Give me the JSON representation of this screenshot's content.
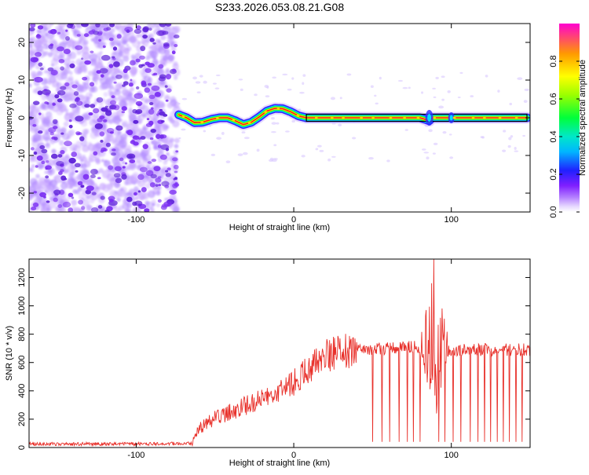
{
  "title": "S233.2026.053.08.21.G08",
  "chart_data": [
    {
      "type": "heatmap",
      "name": "spectrogram",
      "xlabel": "Height of straight line (km)",
      "ylabel": "Frequency (Hz)",
      "xlim": [
        -168,
        150
      ],
      "ylim": [
        -25,
        25
      ],
      "xticks": [
        -100,
        0,
        100
      ],
      "yticks": [
        -20,
        -10,
        0,
        10,
        20
      ],
      "noise_region_x": [
        -168,
        -74
      ],
      "ridge": {
        "x": [
          -73,
          -68,
          -63,
          -58,
          -52,
          -47,
          -42,
          -37,
          -32,
          -27,
          -22,
          -17,
          -12,
          -7,
          -2,
          3,
          8,
          20,
          40,
          60,
          80,
          84,
          86,
          88,
          95,
          98,
          100,
          102,
          110,
          130,
          148
        ],
        "y": [
          0.8,
          0,
          -1.3,
          -1.2,
          -0.4,
          0,
          0,
          -0.8,
          -1.8,
          -1.2,
          0.2,
          1.8,
          2.5,
          2.4,
          1.6,
          0.5,
          0,
          0,
          0,
          0,
          0,
          -0.5,
          -0.8,
          0,
          0,
          0,
          0,
          0,
          0,
          0,
          0
        ]
      },
      "colorbar": {
        "label": "Normalized spectral amplitude",
        "range": [
          0,
          1
        ],
        "ticks": [
          "0.0",
          "0.2",
          "0.4",
          "0.6",
          "0.8"
        ]
      }
    },
    {
      "type": "line",
      "name": "snr",
      "xlabel": "Height of straight line (km)",
      "ylabel": "SNR (10 * v/v)",
      "xlim": [
        -168,
        150
      ],
      "ylim": [
        0,
        1330
      ],
      "xticks": [
        -100,
        0,
        100
      ],
      "yticks": [
        0,
        200,
        400,
        600,
        800,
        1000,
        1200
      ],
      "color": "#e8302a",
      "trend": {
        "x": [
          -168,
          -100,
          -65,
          -60,
          -50,
          -40,
          -30,
          -20,
          -10,
          0,
          10,
          20,
          30,
          40,
          60,
          80,
          100,
          120,
          150
        ],
        "y": [
          25,
          25,
          30,
          130,
          210,
          250,
          300,
          350,
          400,
          460,
          560,
          640,
          680,
          690,
          700,
          710,
          690,
          690,
          690
        ]
      },
      "dropouts_x": [
        50,
        56,
        61,
        67,
        72,
        76,
        80,
        92,
        96,
        101,
        106,
        112,
        117,
        121,
        125,
        129,
        133,
        137,
        141,
        145
      ],
      "dropout_level": 40,
      "spike": {
        "x": 89,
        "y": 1330
      },
      "disturbed_range_x": [
        80,
        98
      ]
    }
  ]
}
